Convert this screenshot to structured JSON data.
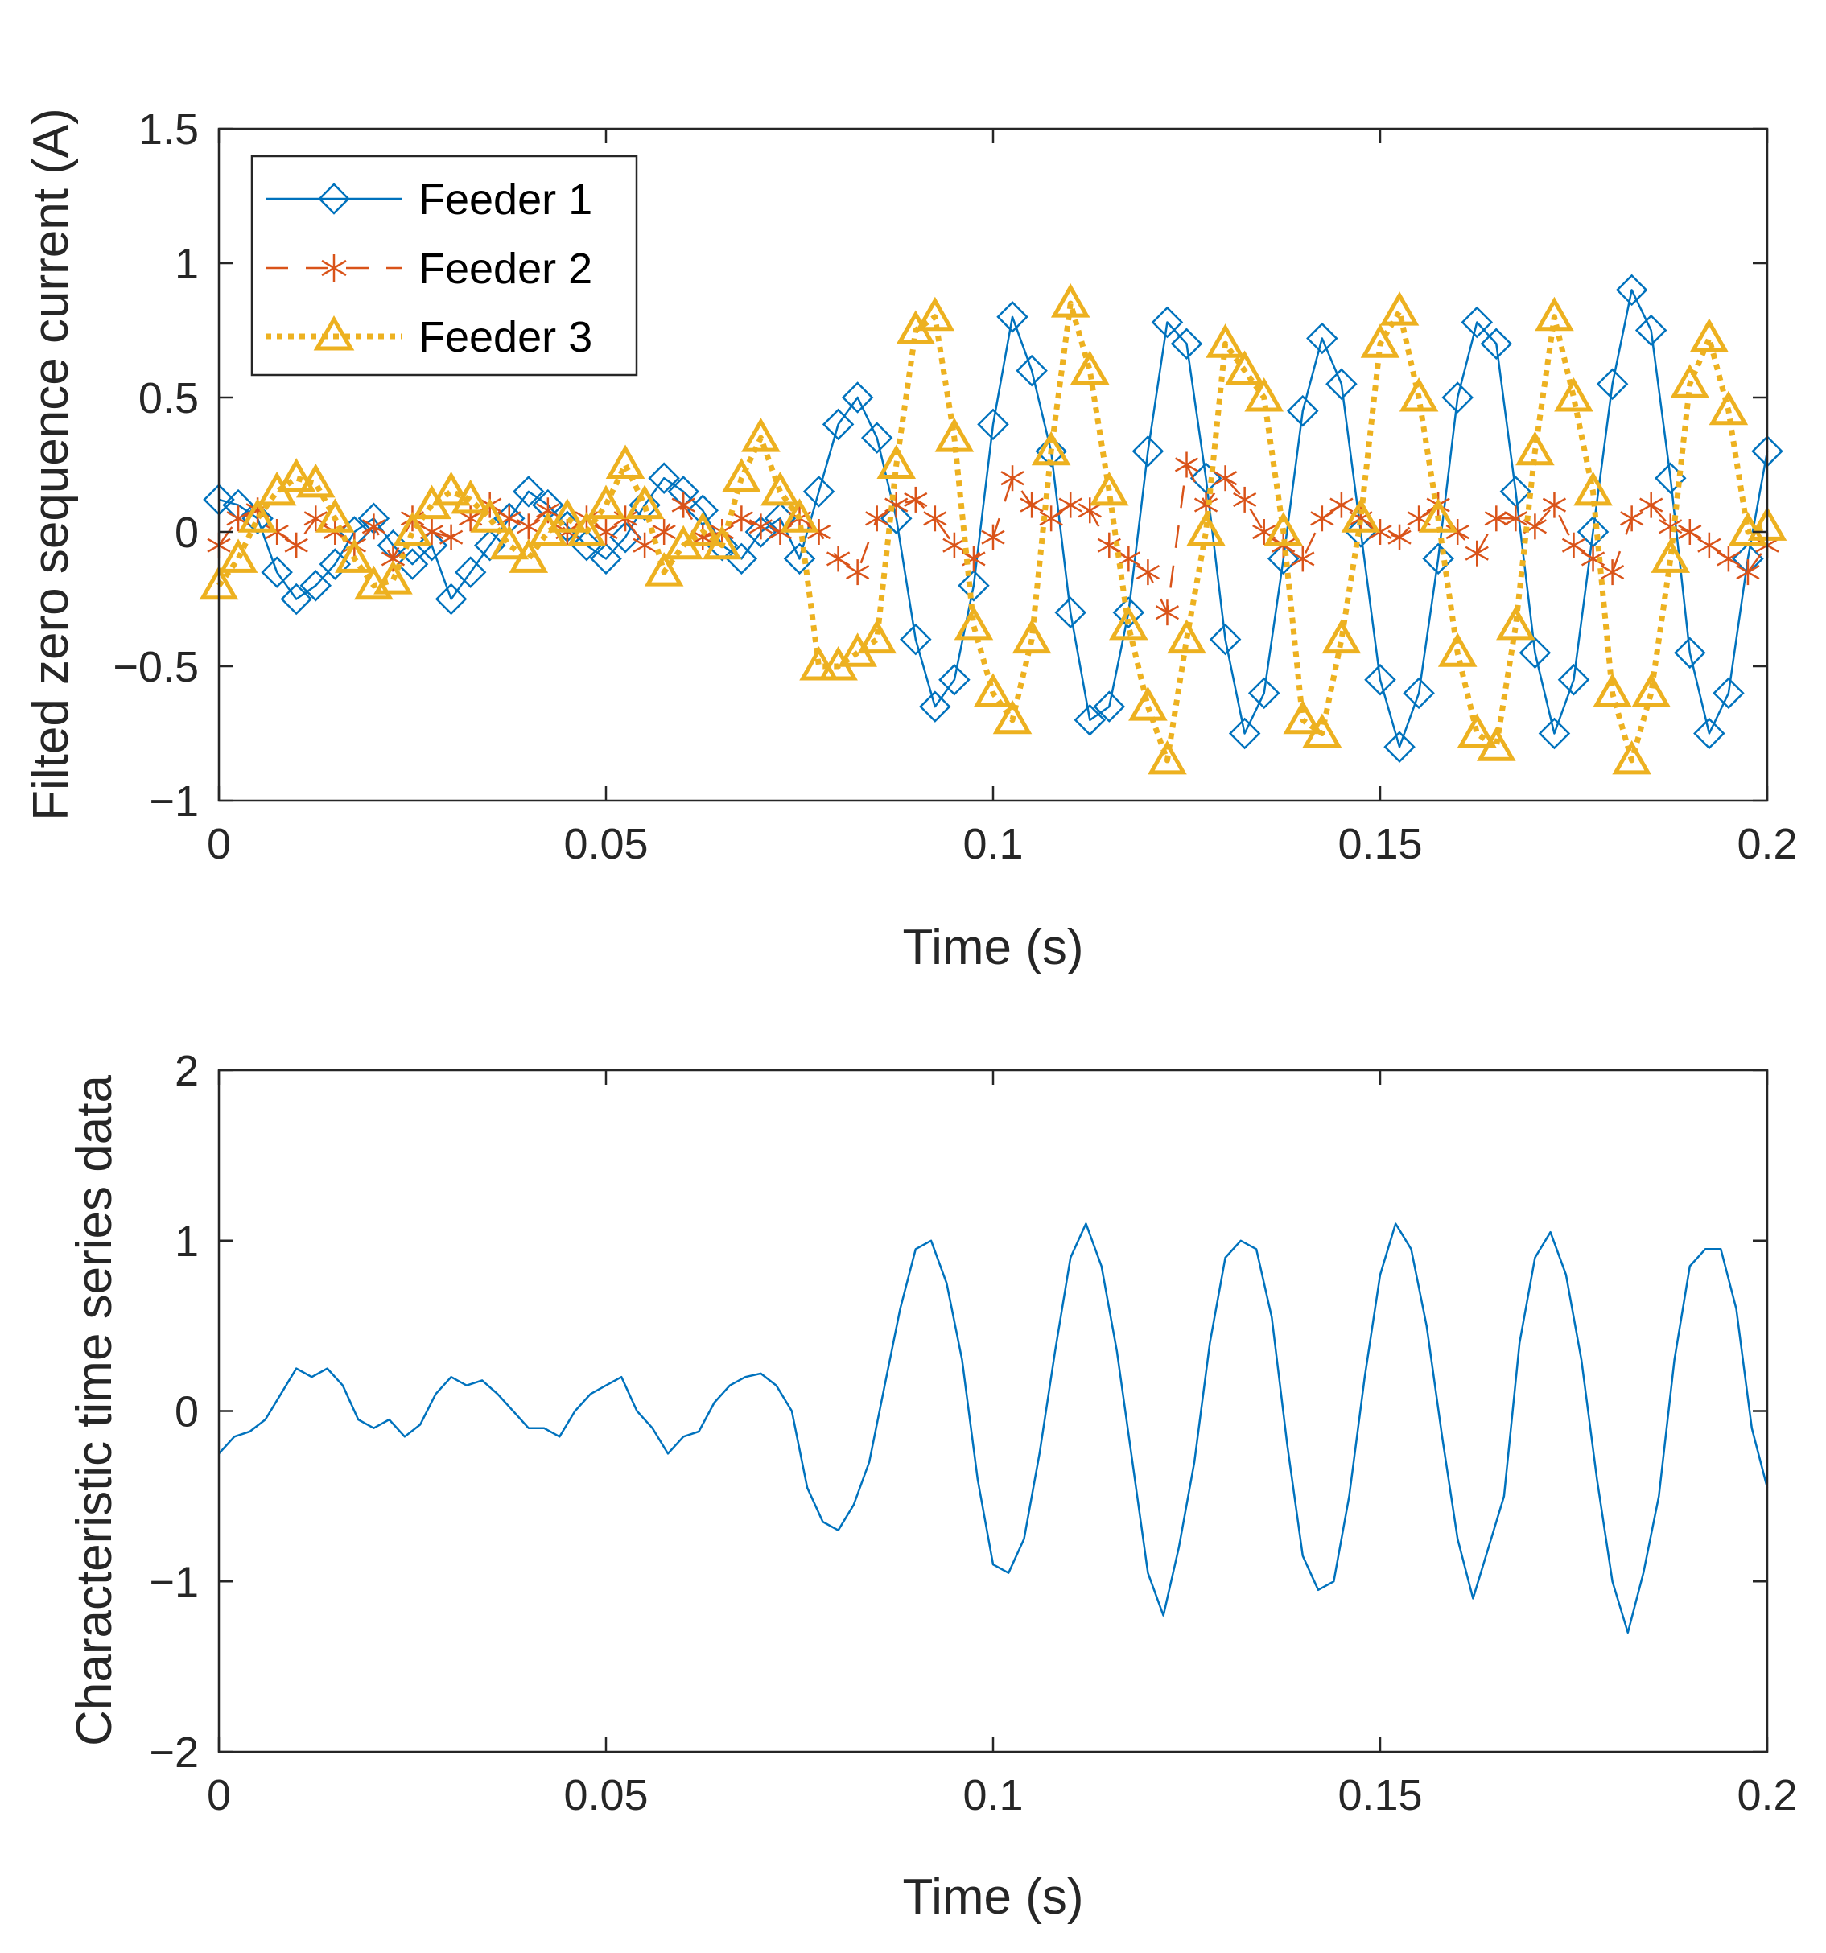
{
  "colors": {
    "feeder1": "#0072BD",
    "feeder2": "#D95319",
    "feeder3": "#EDB120",
    "axis": "#262626"
  },
  "chart_data": [
    {
      "type": "line",
      "title": "",
      "xlabel": "Time (s)",
      "ylabel": "Filted zero sequence current (A)",
      "xlim": [
        0,
        0.2
      ],
      "ylim": [
        -1,
        1.5
      ],
      "xticks": [
        0,
        0.05,
        0.1,
        0.15,
        0.2
      ],
      "xtick_labels": [
        "0",
        "0.05",
        "0.1",
        "0.15",
        "0.2"
      ],
      "yticks": [
        -1,
        -0.5,
        0,
        0.5,
        1,
        1.5
      ],
      "ytick_labels": [
        "−1",
        "−0.5",
        "0",
        "0.5",
        "1",
        "1.5"
      ],
      "legend_position": "top-left",
      "series": [
        {
          "name": "Feeder 1",
          "marker": "diamond",
          "line": "solid",
          "color": "#0072BD",
          "x": [
            0.0,
            0.0025,
            0.005,
            0.0075,
            0.01,
            0.0125,
            0.015,
            0.0175,
            0.02,
            0.0225,
            0.025,
            0.0275,
            0.03,
            0.0325,
            0.035,
            0.0375,
            0.04,
            0.0425,
            0.045,
            0.0475,
            0.05,
            0.0525,
            0.055,
            0.0575,
            0.06,
            0.0625,
            0.065,
            0.0675,
            0.07,
            0.0725,
            0.075,
            0.0775,
            0.08,
            0.0825,
            0.085,
            0.0875,
            0.09,
            0.0925,
            0.095,
            0.0975,
            0.1,
            0.1025,
            0.105,
            0.1075,
            0.11,
            0.1125,
            0.115,
            0.1175,
            0.12,
            0.1225,
            0.125,
            0.1275,
            0.13,
            0.1325,
            0.135,
            0.1375,
            0.14,
            0.1425,
            0.145,
            0.1475,
            0.15,
            0.1525,
            0.155,
            0.1575,
            0.16,
            0.1625,
            0.165,
            0.1675,
            0.17,
            0.1725,
            0.175,
            0.1775,
            0.18,
            0.1825,
            0.185,
            0.1875,
            0.19,
            0.1925,
            0.195,
            0.1975,
            0.2
          ],
          "y": [
            0.12,
            0.1,
            0.05,
            -0.15,
            -0.25,
            -0.2,
            -0.12,
            0.0,
            0.05,
            -0.05,
            -0.12,
            -0.05,
            -0.25,
            -0.15,
            -0.05,
            0.05,
            0.15,
            0.1,
            0.02,
            -0.05,
            -0.1,
            -0.02,
            0.1,
            0.2,
            0.15,
            0.08,
            -0.05,
            -0.1,
            0.0,
            0.05,
            -0.1,
            0.15,
            0.4,
            0.5,
            0.35,
            0.05,
            -0.4,
            -0.65,
            -0.55,
            -0.2,
            0.4,
            0.8,
            0.6,
            0.3,
            -0.3,
            -0.7,
            -0.65,
            -0.3,
            0.3,
            0.78,
            0.7,
            0.2,
            -0.4,
            -0.75,
            -0.6,
            -0.1,
            0.45,
            0.72,
            0.55,
            0.0,
            -0.55,
            -0.8,
            -0.6,
            -0.1,
            0.5,
            0.78,
            0.7,
            0.15,
            -0.45,
            -0.75,
            -0.55,
            0.0,
            0.55,
            0.9,
            0.75,
            0.2,
            -0.45,
            -0.75,
            -0.6,
            -0.1,
            0.3
          ]
        },
        {
          "name": "Feeder 2",
          "marker": "asterisk",
          "line": "dashed",
          "color": "#D95319",
          "x": [
            0.0,
            0.0025,
            0.005,
            0.0075,
            0.01,
            0.0125,
            0.015,
            0.0175,
            0.02,
            0.0225,
            0.025,
            0.0275,
            0.03,
            0.0325,
            0.035,
            0.0375,
            0.04,
            0.0425,
            0.045,
            0.0475,
            0.05,
            0.0525,
            0.055,
            0.0575,
            0.06,
            0.0625,
            0.065,
            0.0675,
            0.07,
            0.0725,
            0.075,
            0.0775,
            0.08,
            0.0825,
            0.085,
            0.0875,
            0.09,
            0.0925,
            0.095,
            0.0975,
            0.1,
            0.1025,
            0.105,
            0.1075,
            0.11,
            0.1125,
            0.115,
            0.1175,
            0.12,
            0.1225,
            0.125,
            0.1275,
            0.13,
            0.1325,
            0.135,
            0.1375,
            0.14,
            0.1425,
            0.145,
            0.1475,
            0.15,
            0.1525,
            0.155,
            0.1575,
            0.16,
            0.1625,
            0.165,
            0.1675,
            0.17,
            0.1725,
            0.175,
            0.1775,
            0.18,
            0.1825,
            0.185,
            0.1875,
            0.19,
            0.1925,
            0.195,
            0.1975,
            0.2
          ],
          "y": [
            -0.05,
            0.05,
            0.08,
            0.0,
            -0.05,
            0.05,
            0.0,
            -0.05,
            0.02,
            -0.1,
            0.05,
            0.0,
            -0.02,
            0.05,
            0.1,
            0.05,
            0.02,
            0.08,
            0.0,
            0.05,
            0.0,
            0.05,
            -0.05,
            0.0,
            0.1,
            -0.02,
            0.0,
            0.05,
            0.02,
            0.0,
            0.05,
            0.0,
            -0.1,
            -0.15,
            0.05,
            0.1,
            0.12,
            0.05,
            -0.05,
            -0.1,
            -0.02,
            0.2,
            0.1,
            0.05,
            0.1,
            0.08,
            -0.05,
            -0.1,
            -0.15,
            -0.3,
            0.25,
            0.1,
            0.2,
            0.12,
            0.0,
            -0.05,
            -0.1,
            0.05,
            0.1,
            0.05,
            0.0,
            -0.02,
            0.05,
            0.1,
            0.0,
            -0.08,
            0.05,
            0.05,
            0.02,
            0.1,
            -0.05,
            -0.1,
            -0.15,
            0.05,
            0.1,
            0.02,
            0.0,
            -0.05,
            -0.1,
            -0.15,
            -0.05
          ]
        },
        {
          "name": "Feeder 3",
          "marker": "triangle",
          "line": "dotted",
          "color": "#EDB120",
          "x": [
            0.0,
            0.0025,
            0.005,
            0.0075,
            0.01,
            0.0125,
            0.015,
            0.0175,
            0.02,
            0.0225,
            0.025,
            0.0275,
            0.03,
            0.0325,
            0.035,
            0.0375,
            0.04,
            0.0425,
            0.045,
            0.0475,
            0.05,
            0.0525,
            0.055,
            0.0575,
            0.06,
            0.0625,
            0.065,
            0.0675,
            0.07,
            0.0725,
            0.075,
            0.0775,
            0.08,
            0.0825,
            0.085,
            0.0875,
            0.09,
            0.0925,
            0.095,
            0.0975,
            0.1,
            0.1025,
            0.105,
            0.1075,
            0.11,
            0.1125,
            0.115,
            0.1175,
            0.12,
            0.1225,
            0.125,
            0.1275,
            0.13,
            0.1325,
            0.135,
            0.1375,
            0.14,
            0.1425,
            0.145,
            0.1475,
            0.15,
            0.1525,
            0.155,
            0.1575,
            0.16,
            0.1625,
            0.165,
            0.1675,
            0.17,
            0.1725,
            0.175,
            0.1775,
            0.18,
            0.1825,
            0.185,
            0.1875,
            0.19,
            0.1925,
            0.195,
            0.1975,
            0.2
          ],
          "y": [
            -0.2,
            -0.1,
            0.05,
            0.15,
            0.2,
            0.18,
            0.05,
            -0.1,
            -0.2,
            -0.18,
            0.0,
            0.1,
            0.15,
            0.12,
            0.05,
            -0.05,
            -0.1,
            0.0,
            0.05,
            0.0,
            0.1,
            0.25,
            0.1,
            -0.15,
            -0.05,
            0.0,
            -0.05,
            0.2,
            0.35,
            0.15,
            0.05,
            -0.5,
            -0.5,
            -0.45,
            -0.4,
            0.25,
            0.75,
            0.8,
            0.35,
            -0.35,
            -0.6,
            -0.7,
            -0.4,
            0.3,
            0.85,
            0.6,
            0.15,
            -0.35,
            -0.65,
            -0.85,
            -0.4,
            0.0,
            0.7,
            0.6,
            0.5,
            0.0,
            -0.7,
            -0.75,
            -0.4,
            0.05,
            0.7,
            0.82,
            0.5,
            0.05,
            -0.45,
            -0.75,
            -0.8,
            -0.35,
            0.3,
            0.8,
            0.5,
            0.15,
            -0.6,
            -0.85,
            -0.6,
            -0.1,
            0.55,
            0.72,
            0.45,
            0.0,
            0.02
          ]
        }
      ]
    },
    {
      "type": "line",
      "title": "",
      "xlabel": "Time (s)",
      "ylabel": "Characteristic time series data",
      "xlim": [
        0,
        0.2
      ],
      "ylim": [
        -2,
        2
      ],
      "xticks": [
        0,
        0.05,
        0.1,
        0.15,
        0.2
      ],
      "xtick_labels": [
        "0",
        "0.05",
        "0.1",
        "0.15",
        "0.2"
      ],
      "yticks": [
        -2,
        -1,
        0,
        1,
        2
      ],
      "ytick_labels": [
        "−2",
        "−1",
        "0",
        "1",
        "2"
      ],
      "series": [
        {
          "name": "Characteristic time series data",
          "color": "#0072BD",
          "x": [
            0.0,
            0.002,
            0.004,
            0.006,
            0.008,
            0.01,
            0.012,
            0.014,
            0.016,
            0.018,
            0.02,
            0.022,
            0.024,
            0.026,
            0.028,
            0.03,
            0.032,
            0.034,
            0.036,
            0.038,
            0.04,
            0.042,
            0.044,
            0.046,
            0.048,
            0.05,
            0.052,
            0.054,
            0.056,
            0.058,
            0.06,
            0.062,
            0.064,
            0.066,
            0.068,
            0.07,
            0.072,
            0.074,
            0.076,
            0.078,
            0.08,
            0.082,
            0.084,
            0.086,
            0.088,
            0.09,
            0.092,
            0.094,
            0.096,
            0.098,
            0.1,
            0.102,
            0.104,
            0.106,
            0.108,
            0.11,
            0.112,
            0.114,
            0.116,
            0.118,
            0.12,
            0.122,
            0.124,
            0.126,
            0.128,
            0.13,
            0.132,
            0.134,
            0.136,
            0.138,
            0.14,
            0.142,
            0.144,
            0.146,
            0.148,
            0.15,
            0.152,
            0.154,
            0.156,
            0.158,
            0.16,
            0.162,
            0.164,
            0.166,
            0.168,
            0.17,
            0.172,
            0.174,
            0.176,
            0.178,
            0.18,
            0.182,
            0.184,
            0.186,
            0.188,
            0.19,
            0.192,
            0.194,
            0.196,
            0.198,
            0.2
          ],
          "y": [
            -0.25,
            -0.15,
            -0.12,
            -0.05,
            0.1,
            0.25,
            0.2,
            0.25,
            0.15,
            -0.05,
            -0.1,
            -0.05,
            -0.15,
            -0.08,
            0.1,
            0.2,
            0.15,
            0.18,
            0.1,
            0.0,
            -0.1,
            -0.1,
            -0.15,
            0.0,
            0.1,
            0.15,
            0.2,
            0.0,
            -0.1,
            -0.25,
            -0.15,
            -0.12,
            0.05,
            0.15,
            0.2,
            0.22,
            0.15,
            0.0,
            -0.45,
            -0.65,
            -0.7,
            -0.55,
            -0.3,
            0.15,
            0.6,
            0.95,
            1.0,
            0.75,
            0.3,
            -0.4,
            -0.9,
            -0.95,
            -0.75,
            -0.25,
            0.35,
            0.9,
            1.1,
            0.85,
            0.35,
            -0.3,
            -0.95,
            -1.2,
            -0.8,
            -0.3,
            0.4,
            0.9,
            1.0,
            0.95,
            0.55,
            -0.2,
            -0.85,
            -1.05,
            -1.0,
            -0.5,
            0.2,
            0.8,
            1.1,
            0.95,
            0.5,
            -0.15,
            -0.75,
            -1.1,
            -0.8,
            -0.5,
            0.4,
            0.9,
            1.05,
            0.8,
            0.3,
            -0.4,
            -1.0,
            -1.3,
            -0.95,
            -0.5,
            0.3,
            0.85,
            0.95,
            0.95,
            0.6,
            -0.1,
            -0.45
          ]
        }
      ]
    }
  ]
}
